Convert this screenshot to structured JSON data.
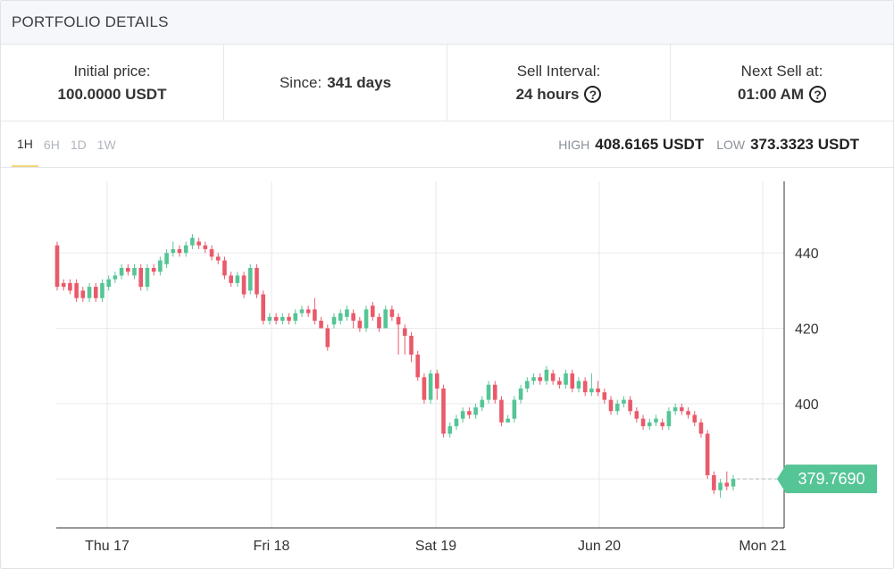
{
  "header": {
    "title": "PORTFOLIO DETAILS"
  },
  "stats": {
    "initial_price": {
      "label": "Initial price:",
      "value": "100.0000 USDT"
    },
    "since": {
      "label": "Since:",
      "value": "341 days"
    },
    "sell_interval": {
      "label": "Sell Interval:",
      "value": "24 hours"
    },
    "next_sell": {
      "label": "Next Sell at:",
      "value": "01:00 AM"
    }
  },
  "tabs": [
    {
      "label": "1H",
      "active": true
    },
    {
      "label": "6H",
      "active": false
    },
    {
      "label": "1D",
      "active": false
    },
    {
      "label": "1W",
      "active": false
    }
  ],
  "high": {
    "label": "HIGH",
    "value": "408.6165 USDT"
  },
  "low": {
    "label": "LOW",
    "value": "373.3323 USDT"
  },
  "colors": {
    "up": "#55c596",
    "down": "#e95a6a",
    "grid": "#e8eaed",
    "axis": "#333333"
  },
  "chart_data": {
    "type": "candlestick",
    "x_ticks": [
      "Thu 17",
      "Fri 18",
      "Sat 19",
      "Jun 20",
      "Mon 21"
    ],
    "y_ticks": [
      400,
      420,
      440
    ],
    "ylim": [
      367,
      459
    ],
    "last_price": "379.7690",
    "candles": [
      [
        442,
        431,
        443,
        430
      ],
      [
        432,
        431,
        433,
        430
      ],
      [
        432,
        430,
        433,
        429
      ],
      [
        432,
        428,
        433,
        427
      ],
      [
        430,
        428,
        431,
        427
      ],
      [
        428,
        431,
        432,
        427
      ],
      [
        431,
        428,
        432,
        427
      ],
      [
        428,
        432,
        433,
        427
      ],
      [
        431,
        433,
        434,
        430
      ],
      [
        433,
        434,
        435,
        432
      ],
      [
        434,
        436,
        437,
        433
      ],
      [
        436,
        435,
        437,
        434
      ],
      [
        434,
        436,
        437,
        433
      ],
      [
        436,
        431,
        437,
        430
      ],
      [
        431,
        436,
        437,
        430
      ],
      [
        436,
        435,
        437,
        434
      ],
      [
        435,
        438,
        439,
        434
      ],
      [
        437,
        440,
        441,
        436
      ],
      [
        440,
        441,
        443,
        439
      ],
      [
        441,
        440,
        442,
        439
      ],
      [
        440,
        442,
        443,
        439
      ],
      [
        442,
        444,
        445,
        441
      ],
      [
        443,
        442,
        444,
        441
      ],
      [
        442,
        441,
        443,
        440
      ],
      [
        441,
        439,
        442,
        438
      ],
      [
        439,
        438,
        440,
        437
      ],
      [
        438,
        434,
        439,
        433
      ],
      [
        434,
        432,
        435,
        431
      ],
      [
        432,
        434,
        435,
        431
      ],
      [
        434,
        429,
        435,
        428
      ],
      [
        430,
        436,
        437,
        429
      ],
      [
        436,
        429,
        437,
        428
      ],
      [
        429,
        422,
        430,
        421
      ],
      [
        422,
        423,
        424,
        421
      ],
      [
        423,
        422,
        424,
        421
      ],
      [
        422,
        423,
        424,
        421
      ],
      [
        423,
        422,
        424,
        421
      ],
      [
        422,
        424,
        425,
        421
      ],
      [
        424,
        425,
        426,
        423
      ],
      [
        425,
        424,
        426,
        423
      ],
      [
        425,
        422,
        428,
        421
      ],
      [
        422,
        420,
        423,
        420
      ],
      [
        420,
        415,
        421,
        414
      ],
      [
        421,
        423,
        424,
        420
      ],
      [
        422,
        424,
        425,
        421
      ],
      [
        423,
        425,
        426,
        422
      ],
      [
        424,
        422,
        425,
        420
      ],
      [
        422,
        420,
        423,
        419
      ],
      [
        420,
        425,
        426,
        419
      ],
      [
        426,
        423,
        427,
        422
      ],
      [
        423,
        420,
        424,
        419
      ],
      [
        420,
        425,
        426,
        420
      ],
      [
        425,
        423,
        426,
        422
      ],
      [
        423,
        421,
        424,
        413
      ],
      [
        420,
        418,
        421,
        413
      ],
      [
        418,
        413,
        419,
        411
      ],
      [
        413,
        407,
        414,
        406
      ],
      [
        407,
        401,
        408,
        400
      ],
      [
        401,
        408,
        409,
        400
      ],
      [
        408,
        404,
        409,
        401
      ],
      [
        404,
        392,
        405,
        391
      ],
      [
        392,
        394,
        395,
        391
      ],
      [
        394,
        396,
        397,
        393
      ],
      [
        396,
        398,
        399,
        395
      ],
      [
        398,
        397,
        399,
        396
      ],
      [
        397,
        399,
        400,
        396
      ],
      [
        399,
        401,
        402,
        398
      ],
      [
        401,
        405,
        406,
        400
      ],
      [
        405,
        401,
        406,
        400
      ],
      [
        401,
        395,
        402,
        394
      ],
      [
        395,
        396,
        397,
        395
      ],
      [
        396,
        401,
        402,
        395
      ],
      [
        401,
        404,
        405,
        400
      ],
      [
        404,
        406,
        407,
        403
      ],
      [
        406,
        407,
        408,
        405
      ],
      [
        407,
        406,
        408,
        405
      ],
      [
        406,
        409,
        410,
        405
      ],
      [
        408,
        406,
        409,
        405
      ],
      [
        406,
        405,
        407,
        404
      ],
      [
        405,
        408,
        409,
        404
      ],
      [
        408,
        404,
        409,
        403
      ],
      [
        404,
        406,
        407,
        403
      ],
      [
        406,
        403,
        407,
        402
      ],
      [
        403,
        404,
        408,
        402
      ],
      [
        404,
        403,
        406,
        402
      ],
      [
        403,
        401,
        404,
        400
      ],
      [
        401,
        398,
        402,
        397
      ],
      [
        398,
        400,
        401,
        397
      ],
      [
        400,
        401,
        402,
        399
      ],
      [
        401,
        398,
        402,
        397
      ],
      [
        398,
        396,
        399,
        395
      ],
      [
        396,
        394,
        397,
        393
      ],
      [
        394,
        395,
        396,
        393
      ],
      [
        395,
        396,
        397,
        394
      ],
      [
        395,
        394,
        396,
        393
      ],
      [
        394,
        398,
        399,
        393
      ],
      [
        398,
        399,
        400,
        397
      ],
      [
        399,
        398,
        400,
        397
      ],
      [
        398,
        397,
        399,
        396
      ],
      [
        397,
        395,
        398,
        394
      ],
      [
        395,
        392,
        396,
        391
      ],
      [
        392,
        381,
        393,
        380
      ],
      [
        381,
        377,
        382,
        376
      ],
      [
        377,
        379,
        380,
        375
      ],
      [
        379,
        378,
        382,
        377
      ],
      [
        378,
        380,
        381,
        377
      ]
    ]
  }
}
